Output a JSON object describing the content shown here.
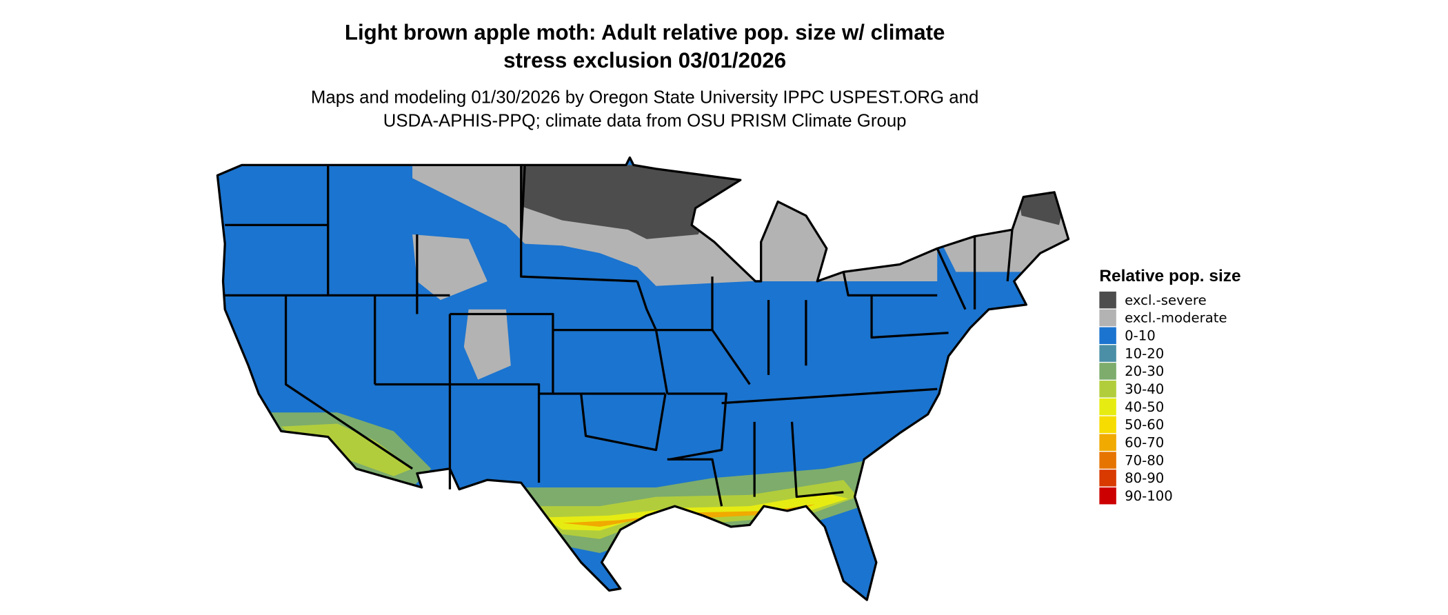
{
  "title_lines": [
    "Light brown apple moth: Adult relative pop. size w/ climate",
    "stress exclusion 03/01/2026"
  ],
  "subtitle_lines": [
    "Maps and modeling 01/30/2026 by Oregon State University IPPC USPEST.ORG and",
    "USDA-APHIS-PPQ; climate data from OSU PRISM Climate Group"
  ],
  "legend": {
    "title": "Relative pop. size",
    "items": [
      {
        "label": "excl.-severe",
        "color": "#4d4d4d"
      },
      {
        "label": "excl.-moderate",
        "color": "#b3b3b3"
      },
      {
        "label": "0-10",
        "color": "#1b74cf"
      },
      {
        "label": "10-20",
        "color": "#4b8fa6"
      },
      {
        "label": "20-30",
        "color": "#7dac6c"
      },
      {
        "label": "30-40",
        "color": "#b2cd3c"
      },
      {
        "label": "40-50",
        "color": "#e6ec12"
      },
      {
        "label": "50-60",
        "color": "#f6dc00"
      },
      {
        "label": "60-70",
        "color": "#f0aa00"
      },
      {
        "label": "70-80",
        "color": "#e67400"
      },
      {
        "label": "80-90",
        "color": "#d83a00"
      },
      {
        "label": "90-100",
        "color": "#cc0000"
      }
    ]
  }
}
